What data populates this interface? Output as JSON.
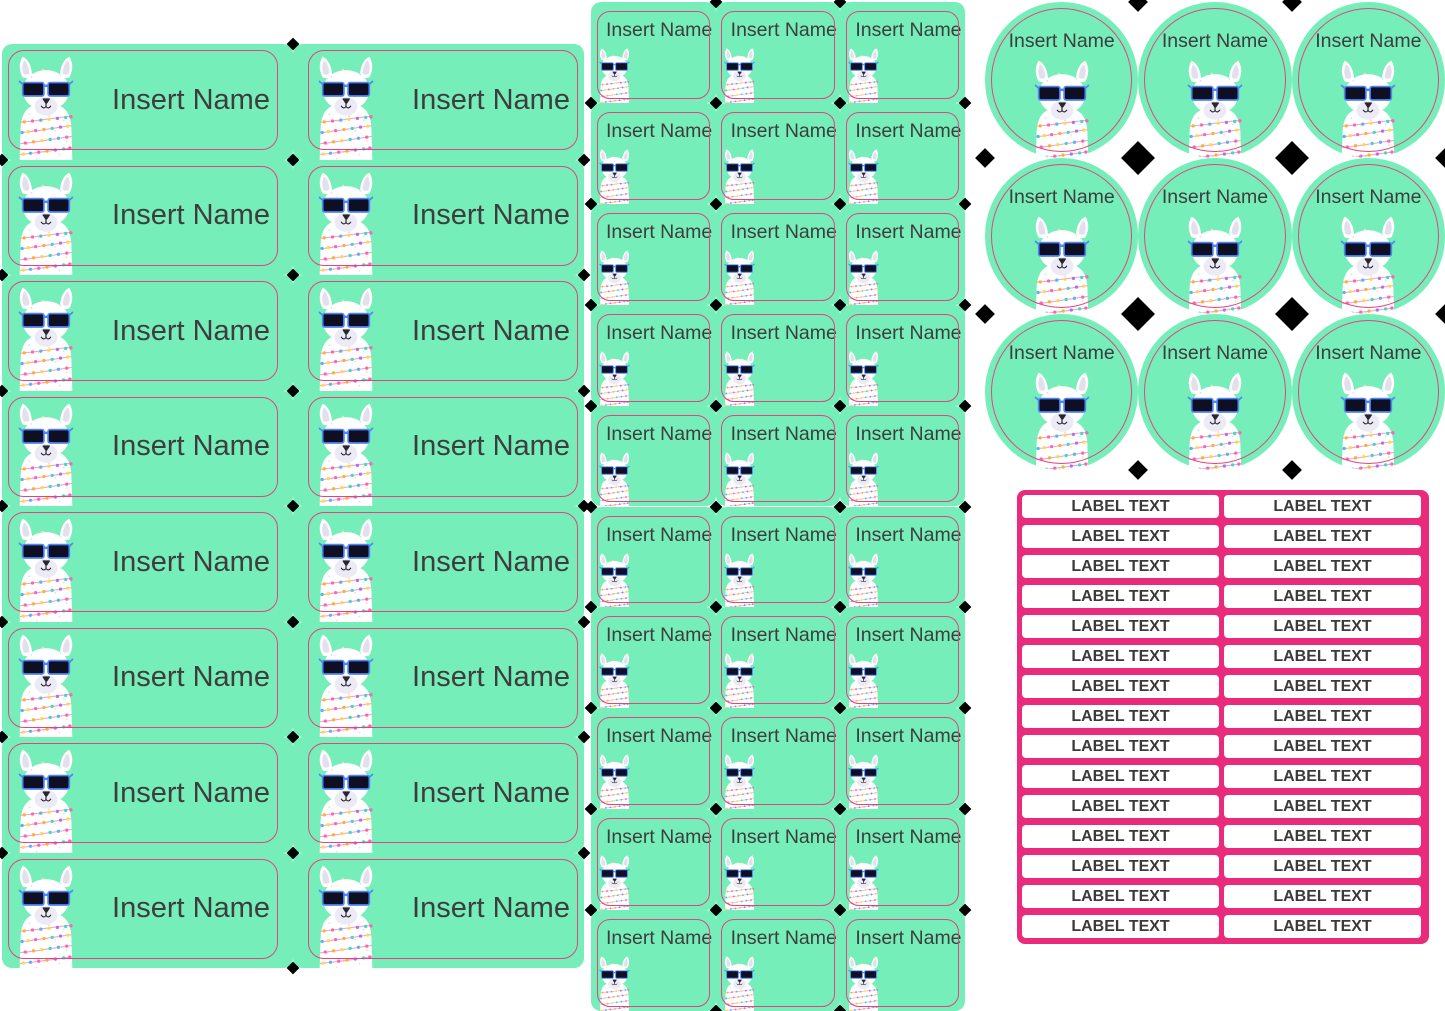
{
  "product": "name-label-sticker-sheet",
  "sections": {
    "large_labels": {
      "rows": 8,
      "cols": 2,
      "text": "Insert Name"
    },
    "small_labels": {
      "rows": 10,
      "cols": 3,
      "text": "Insert Name"
    },
    "round_labels": {
      "rows": 3,
      "cols": 3,
      "text": "Insert Name"
    },
    "slim_labels": {
      "rows": 15,
      "cols": 2,
      "text": "LABEL TEXT"
    }
  },
  "icons": {
    "llama": "llama-with-sunglasses-and-string-lights"
  },
  "colors": {
    "mint": "#76eeb9",
    "label_border_pink": "#e0457f",
    "slim_sheet_pink": "#ea2a7b",
    "text_dark": "#3d3d3d",
    "slim_text": "#3a3a3a",
    "cut_mark": "#000000",
    "glasses_blue": "#4f86f7"
  }
}
